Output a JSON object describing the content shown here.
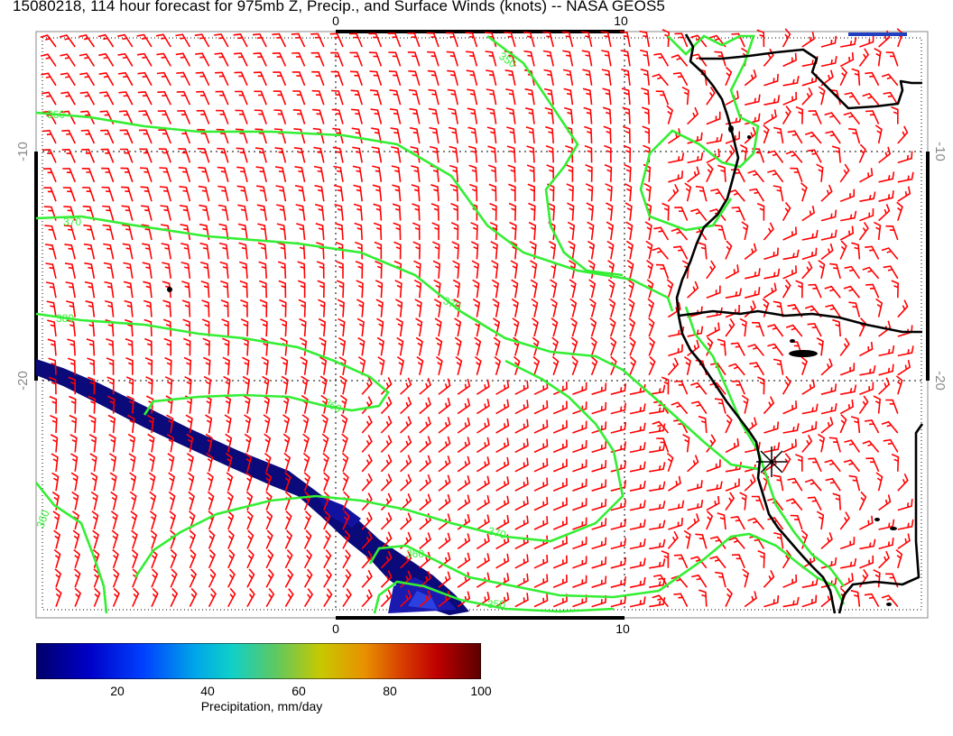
{
  "title": "15080218, 114 hour forecast for 975mb Z, Precip., and Surface Winds (knots) -- NASA GEOS5",
  "axes": {
    "x_ticks": [
      "0",
      "10"
    ],
    "y_ticks": [
      "-10",
      "-20"
    ]
  },
  "contour_labels": [
    "360",
    "370",
    "380",
    "370",
    "360",
    "350",
    "370",
    "350",
    "360",
    "360"
  ],
  "colorbar": {
    "label": "Precipitation, mm/day",
    "ticks": [
      "20",
      "40",
      "60",
      "80",
      "100"
    ],
    "range": [
      0,
      100
    ],
    "colors": [
      "#00006a",
      "#0000d0",
      "#0050ff",
      "#00b0e0",
      "#10d0c0",
      "#60c860",
      "#c8c800",
      "#e89000",
      "#d04000",
      "#c00000",
      "#600000"
    ]
  },
  "colors": {
    "wind_barbs": "#ff0000",
    "contours": "#33ee33",
    "coastline": "#000000",
    "precip": "#0a0a7a"
  },
  "map": {
    "marker_icon": "asterisk-marker-icon",
    "legend_icon": "wind-barb-icon"
  }
}
